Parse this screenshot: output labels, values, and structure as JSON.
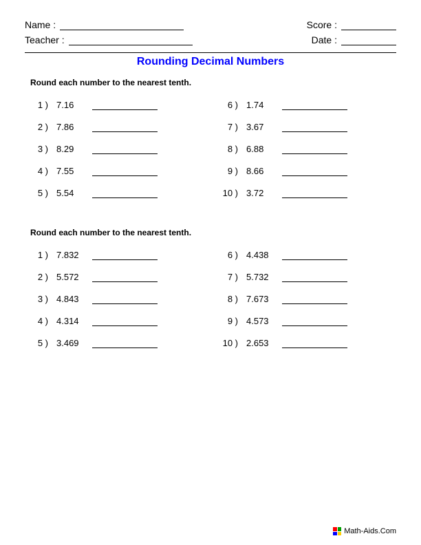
{
  "header": {
    "name_label": "Name :",
    "teacher_label": "Teacher :",
    "score_label": "Score :",
    "date_label": "Date :"
  },
  "title": {
    "text": "Rounding Decimal Numbers",
    "color": "#0000ff"
  },
  "sections": [
    {
      "instruction": "Round each number to the nearest tenth.",
      "left": [
        {
          "n": "1 )",
          "v": "7.16"
        },
        {
          "n": "2 )",
          "v": "7.86"
        },
        {
          "n": "3 )",
          "v": "8.29"
        },
        {
          "n": "4 )",
          "v": "7.55"
        },
        {
          "n": "5 )",
          "v": "5.54"
        }
      ],
      "right": [
        {
          "n": "6 )",
          "v": "1.74"
        },
        {
          "n": "7 )",
          "v": "3.67"
        },
        {
          "n": "8 )",
          "v": "6.88"
        },
        {
          "n": "9 )",
          "v": "8.66"
        },
        {
          "n": "10 )",
          "v": "3.72"
        }
      ]
    },
    {
      "instruction": "Round each number to the nearest tenth.",
      "left": [
        {
          "n": "1 )",
          "v": "7.832"
        },
        {
          "n": "2 )",
          "v": "5.572"
        },
        {
          "n": "3 )",
          "v": "4.843"
        },
        {
          "n": "4 )",
          "v": "4.314"
        },
        {
          "n": "5 )",
          "v": "3.469"
        }
      ],
      "right": [
        {
          "n": "6 )",
          "v": "4.438"
        },
        {
          "n": "7 )",
          "v": "5.732"
        },
        {
          "n": "8 )",
          "v": "7.673"
        },
        {
          "n": "9 )",
          "v": "4.573"
        },
        {
          "n": "10 )",
          "v": "2.653"
        }
      ]
    }
  ],
  "footer": {
    "text": "Math-Aids.Com",
    "icon_colors": [
      "#ff0000",
      "#00a000",
      "#0000ff",
      "#ffcc00"
    ]
  }
}
